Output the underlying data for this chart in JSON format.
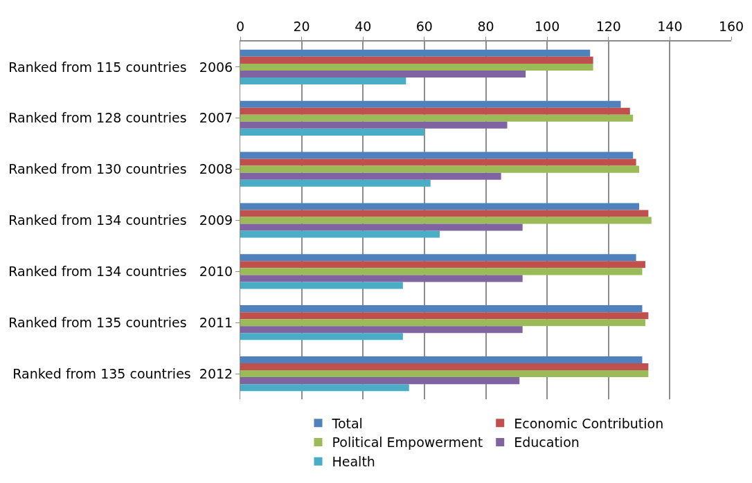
{
  "chart_data": {
    "type": "bar",
    "orientation": "horizontal",
    "categories": [
      "Ranked from 115 countries   2006",
      "Ranked from 128 countries   2007",
      "Ranked from 130 countries   2008",
      "Ranked from 134 countries   2009",
      "Ranked from 134 countries   2010",
      "Ranked from 135 countries   2011",
      "Ranked from 135 countries  2012"
    ],
    "series": [
      {
        "name": "Total",
        "color": "#4f81bd",
        "values": [
          114,
          124,
          128,
          130,
          129,
          131,
          131
        ]
      },
      {
        "name": "Economic Contribution",
        "color": "#c0504d",
        "values": [
          115,
          127,
          129,
          133,
          132,
          133,
          133
        ]
      },
      {
        "name": "Political Empowerment",
        "color": "#9bbb59",
        "values": [
          115,
          128,
          130,
          134,
          131,
          132,
          133
        ]
      },
      {
        "name": "Education",
        "color": "#8064a2",
        "values": [
          93,
          87,
          85,
          92,
          92,
          92,
          91
        ]
      },
      {
        "name": "Health",
        "color": "#4bacc6",
        "values": [
          54,
          60,
          62,
          65,
          53,
          53,
          55
        ]
      }
    ],
    "xlim": [
      0,
      160
    ],
    "xticks": [
      0,
      20,
      40,
      60,
      80,
      100,
      120,
      140,
      160
    ],
    "grid": "x",
    "legend": "bottom"
  }
}
